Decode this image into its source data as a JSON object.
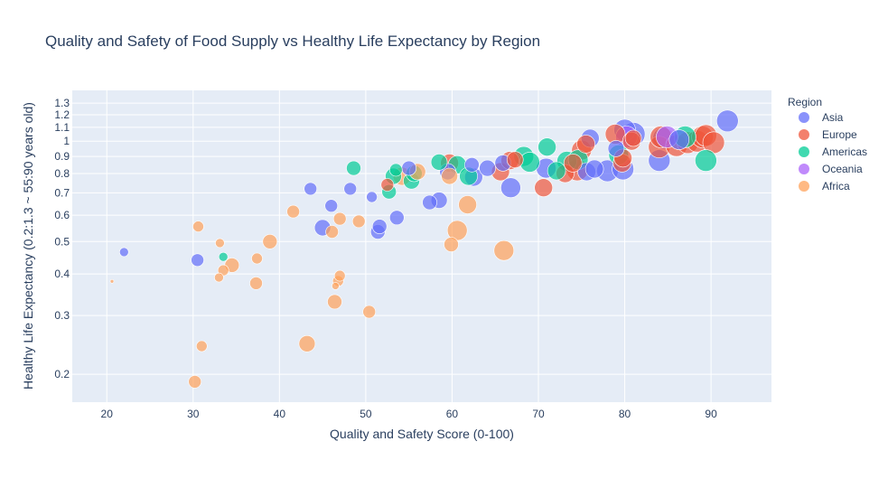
{
  "chart_data": {
    "type": "scatter",
    "title": "Quality and Safety of Food Supply vs Healthy Life Expectancy by Region",
    "xlabel": "Quality and Safety Score (0-100)",
    "ylabel": "Healthy Life Expectancy (0.2:1.3 ~ 55:90 years old)",
    "x_range": [
      16,
      97
    ],
    "y_range": [
      0.165,
      1.42
    ],
    "y_scale": "log",
    "x_ticks": [
      "20",
      "30",
      "40",
      "50",
      "60",
      "70",
      "80",
      "90"
    ],
    "y_ticks": [
      "0.2",
      "0.3",
      "0.4",
      "0.5",
      "0.6",
      "0.7",
      "0.8",
      "0.9",
      "1",
      "1.1",
      "1.2",
      "1.3"
    ],
    "grid": true,
    "legend": {
      "title": "Region",
      "placement": "right"
    },
    "series": [
      {
        "name": "Asia",
        "color": "#636efa",
        "points": [
          [
            22.0,
            0.465,
            5
          ],
          [
            30.5,
            0.44,
            7
          ],
          [
            43.6,
            0.72,
            7
          ],
          [
            45.0,
            0.55,
            9
          ],
          [
            46.0,
            0.64,
            7
          ],
          [
            48.2,
            0.72,
            7
          ],
          [
            50.7,
            0.68,
            6
          ],
          [
            51.4,
            0.535,
            8
          ],
          [
            51.6,
            0.555,
            8
          ],
          [
            53.6,
            0.59,
            8
          ],
          [
            55.0,
            0.83,
            8
          ],
          [
            57.4,
            0.655,
            8
          ],
          [
            58.5,
            0.665,
            9
          ],
          [
            59.5,
            0.81,
            9
          ],
          [
            62.3,
            0.85,
            8
          ],
          [
            62.5,
            0.78,
            10
          ],
          [
            64.1,
            0.83,
            9
          ],
          [
            65.9,
            0.86,
            9
          ],
          [
            66.8,
            0.725,
            11
          ],
          [
            70.9,
            0.83,
            11
          ],
          [
            75.6,
            0.81,
            10
          ],
          [
            76.5,
            0.825,
            10
          ],
          [
            78.0,
            0.815,
            12
          ],
          [
            79.8,
            0.825,
            12
          ],
          [
            76.0,
            1.02,
            10
          ],
          [
            79.0,
            0.95,
            9
          ],
          [
            80.0,
            1.08,
            12
          ],
          [
            81.0,
            1.05,
            13
          ],
          [
            84.0,
            0.875,
            12
          ],
          [
            84.5,
            1.02,
            12
          ],
          [
            86.3,
            1.01,
            11
          ],
          [
            91.9,
            1.15,
            12
          ]
        ]
      },
      {
        "name": "Europe",
        "color": "#ef553b",
        "points": [
          [
            52.5,
            0.74,
            7
          ],
          [
            59.7,
            0.86,
            10
          ],
          [
            65.6,
            0.81,
            10
          ],
          [
            66.7,
            0.875,
            10
          ],
          [
            67.3,
            0.88,
            9
          ],
          [
            70.6,
            0.725,
            10
          ],
          [
            73.1,
            0.8,
            10
          ],
          [
            74.0,
            0.86,
            10
          ],
          [
            74.5,
            0.82,
            12
          ],
          [
            75.0,
            0.94,
            11
          ],
          [
            75.5,
            0.98,
            10
          ],
          [
            78.9,
            1.05,
            11
          ],
          [
            79.7,
            0.86,
            10
          ],
          [
            79.8,
            0.89,
            10
          ],
          [
            80.8,
            1.0,
            10
          ],
          [
            81.0,
            1.02,
            9
          ],
          [
            84.0,
            0.96,
            12
          ],
          [
            84.2,
            1.03,
            12
          ],
          [
            86.0,
            0.97,
            12
          ],
          [
            87.3,
            0.99,
            12
          ],
          [
            88.4,
            1.0,
            12
          ],
          [
            89.0,
            1.03,
            12
          ],
          [
            89.4,
            1.04,
            12
          ],
          [
            90.3,
            0.99,
            12
          ]
        ]
      },
      {
        "name": "Americas",
        "color": "#00cc96",
        "points": [
          [
            33.5,
            0.45,
            5
          ],
          [
            48.6,
            0.83,
            8
          ],
          [
            52.7,
            0.705,
            8
          ],
          [
            53.2,
            0.785,
            9
          ],
          [
            53.5,
            0.82,
            7
          ],
          [
            55.3,
            0.76,
            9
          ],
          [
            55.6,
            0.8,
            9
          ],
          [
            58.5,
            0.865,
            9
          ],
          [
            60.6,
            0.85,
            10
          ],
          [
            61.9,
            0.785,
            10
          ],
          [
            68.3,
            0.9,
            11
          ],
          [
            69.0,
            0.865,
            11
          ],
          [
            71.0,
            0.96,
            10
          ],
          [
            72.1,
            0.815,
            10
          ],
          [
            73.3,
            0.87,
            11
          ],
          [
            74.6,
            0.88,
            11
          ],
          [
            79.3,
            0.91,
            11
          ],
          [
            87.0,
            1.03,
            12
          ],
          [
            89.4,
            0.875,
            12
          ]
        ]
      },
      {
        "name": "Oceania",
        "color": "#ab63fa",
        "points": [
          [
            80.2,
            1.03,
            12
          ],
          [
            84.9,
            1.03,
            12
          ]
        ]
      },
      {
        "name": "Africa",
        "color": "#ffa15a",
        "points": [
          [
            20.6,
            0.38,
            2
          ],
          [
            30.2,
            0.19,
            7
          ],
          [
            30.6,
            0.555,
            6
          ],
          [
            31.0,
            0.243,
            6
          ],
          [
            33.0,
            0.39,
            5
          ],
          [
            33.1,
            0.495,
            5
          ],
          [
            33.5,
            0.41,
            6
          ],
          [
            34.5,
            0.425,
            8
          ],
          [
            37.3,
            0.375,
            7
          ],
          [
            37.4,
            0.445,
            6
          ],
          [
            38.9,
            0.5,
            8
          ],
          [
            41.6,
            0.615,
            7
          ],
          [
            43.2,
            0.247,
            9
          ],
          [
            46.1,
            0.535,
            7
          ],
          [
            46.4,
            0.33,
            8
          ],
          [
            46.5,
            0.368,
            4
          ],
          [
            46.8,
            0.381,
            6
          ],
          [
            47.0,
            0.395,
            6
          ],
          [
            47.0,
            0.585,
            7
          ],
          [
            49.2,
            0.575,
            7
          ],
          [
            50.4,
            0.308,
            7
          ],
          [
            54.2,
            0.785,
            10
          ],
          [
            56.0,
            0.81,
            9
          ],
          [
            59.7,
            0.785,
            9
          ],
          [
            59.9,
            0.49,
            8
          ],
          [
            60.6,
            0.54,
            11
          ],
          [
            61.8,
            0.645,
            10
          ],
          [
            66.0,
            0.47,
            11
          ]
        ]
      }
    ]
  }
}
